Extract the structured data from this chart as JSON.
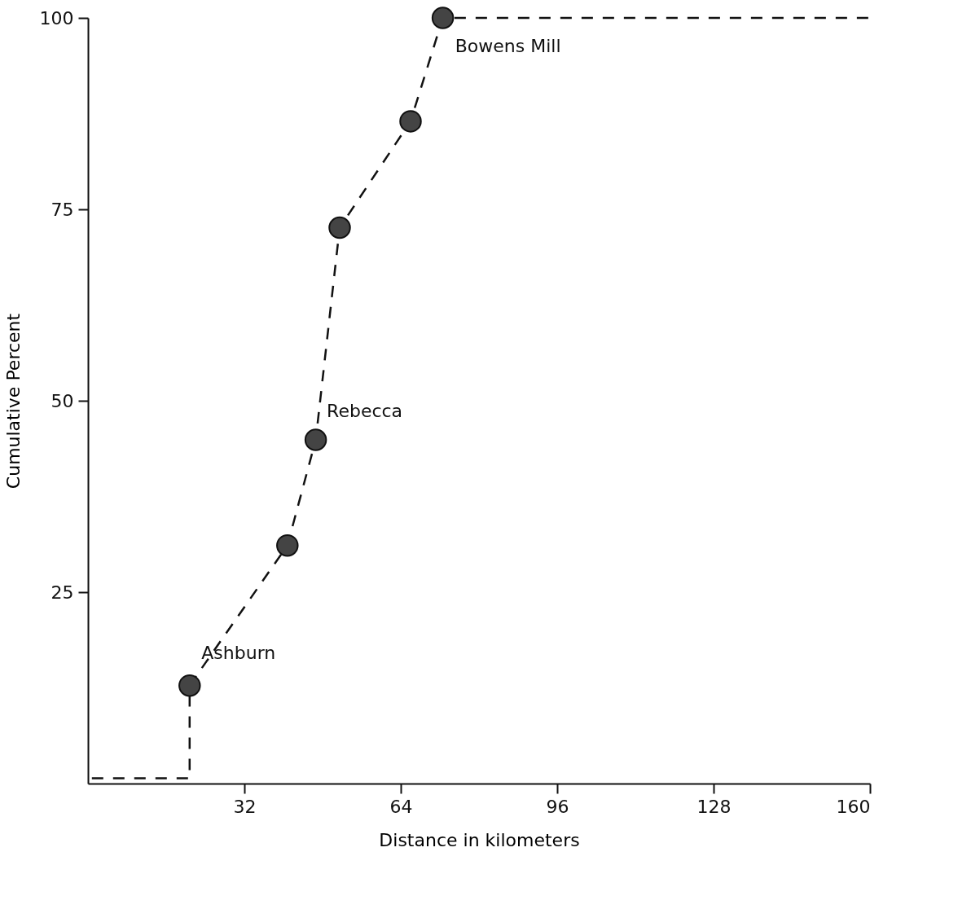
{
  "chart_data": {
    "type": "scatter",
    "xlabel": "Distance in kilometers",
    "ylabel": "Cumulative     Percent",
    "xlim": [
      0,
      160
    ],
    "ylim": [
      0,
      100
    ],
    "xticks": [
      32,
      64,
      96,
      128,
      160
    ],
    "yticks": [
      25,
      50,
      75,
      100
    ],
    "grid": false,
    "marker": "circle",
    "series": [
      {
        "type": "line",
        "line_style": "dashed",
        "marker": "none",
        "color": "#111111",
        "x": [
          0.8,
          20.8,
          20.8,
          40.8,
          46.6,
          51.5,
          66,
          72.6,
          160
        ],
        "values": [
          0.7,
          0.7,
          12.8,
          31.1,
          44.9,
          72.6,
          86.5,
          100,
          100
        ]
      },
      {
        "color": "#444444",
        "x": [
          20.8,
          40.8,
          46.6,
          51.5,
          66,
          72.6
        ],
        "values": [
          12.8,
          31.1,
          44.9,
          72.6,
          86.5,
          100
        ]
      }
    ],
    "annotations": [
      {
        "text": "Ashburn",
        "x": 20.8,
        "y": 12.8
      },
      {
        "text": "Rebecca",
        "x": 46.6,
        "y": 44.9
      },
      {
        "text": "Bowens Mill",
        "x": 72.6,
        "y": 100
      }
    ]
  }
}
